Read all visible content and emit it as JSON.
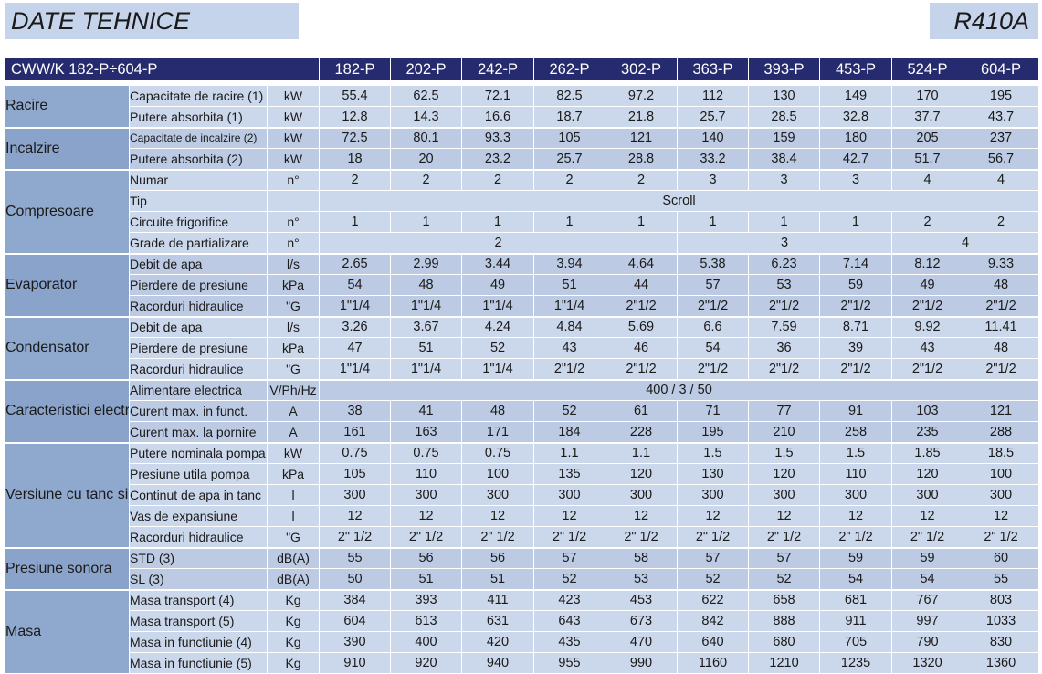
{
  "title": "DATE TEHNICE",
  "refrigerant": "R410A",
  "table": {
    "model_range": "CWW/K 182-P÷604-P",
    "columns": [
      "182-P",
      "202-P",
      "242-P",
      "262-P",
      "302-P",
      "363-P",
      "393-P",
      "453-P",
      "524-P",
      "604-P"
    ],
    "sections": [
      {
        "name": "Racire",
        "rows": [
          {
            "label": "Capacitate de racire (1)",
            "unit": "kW",
            "values": [
              "55.4",
              "62.5",
              "72.1",
              "82.5",
              "97.2",
              "112",
              "130",
              "149",
              "170",
              "195"
            ]
          },
          {
            "label": "Putere absorbita (1)",
            "unit": "kW",
            "values": [
              "12.8",
              "14.3",
              "16.6",
              "18.7",
              "21.8",
              "25.7",
              "28.5",
              "32.8",
              "37.7",
              "43.7"
            ]
          }
        ]
      },
      {
        "name": "Incalzire",
        "rows": [
          {
            "label": "Capacitate de incalzire (2)",
            "unit": "kW",
            "small": true,
            "values": [
              "72.5",
              "80.1",
              "93.3",
              "105",
              "121",
              "140",
              "159",
              "180",
              "205",
              "237"
            ]
          },
          {
            "label": "Putere absorbita (2)",
            "unit": "kW",
            "values": [
              "18",
              "20",
              "23.2",
              "25.7",
              "28.8",
              "33.2",
              "38.4",
              "42.7",
              "51.7",
              "56.7"
            ]
          }
        ]
      },
      {
        "name": "Compresoare",
        "rows": [
          {
            "label": "Numar",
            "unit": "n°",
            "values": [
              "2",
              "2",
              "2",
              "2",
              "2",
              "3",
              "3",
              "3",
              "4",
              "4"
            ]
          },
          {
            "label": "Tip",
            "unit": "",
            "spans": [
              {
                "text": "Scroll",
                "span": 10
              }
            ]
          },
          {
            "label": "Circuite frigorifice",
            "unit": "n°",
            "values": [
              "1",
              "1",
              "1",
              "1",
              "1",
              "1",
              "1",
              "1",
              "2",
              "2"
            ]
          },
          {
            "label": "Grade de partializare",
            "unit": "n°",
            "spans": [
              {
                "text": "2",
                "span": 5
              },
              {
                "text": "3",
                "span": 3
              },
              {
                "text": "4",
                "span": 2
              }
            ]
          }
        ]
      },
      {
        "name": "Evaporator",
        "rows": [
          {
            "label": "Debit de apa",
            "unit": "l/s",
            "values": [
              "2.65",
              "2.99",
              "3.44",
              "3.94",
              "4.64",
              "5.38",
              "6.23",
              "7.14",
              "8.12",
              "9.33"
            ]
          },
          {
            "label": "Pierdere de presiune",
            "unit": "kPa",
            "values": [
              "54",
              "48",
              "49",
              "51",
              "44",
              "57",
              "53",
              "59",
              "49",
              "48"
            ]
          },
          {
            "label": "Racorduri hidraulice",
            "unit": "\"G",
            "values": [
              "1\"1/4",
              "1\"1/4",
              "1\"1/4",
              "1\"1/4",
              "2\"1/2",
              "2\"1/2",
              "2\"1/2",
              "2\"1/2",
              "2\"1/2",
              "2\"1/2"
            ]
          }
        ]
      },
      {
        "name": "Condensator",
        "rows": [
          {
            "label": "Debit de apa",
            "unit": "l/s",
            "values": [
              "3.26",
              "3.67",
              "4.24",
              "4.84",
              "5.69",
              "6.6",
              "7.59",
              "8.71",
              "9.92",
              "11.41"
            ]
          },
          {
            "label": "Pierdere de presiune",
            "unit": "kPa",
            "values": [
              "47",
              "51",
              "52",
              "43",
              "46",
              "54",
              "36",
              "39",
              "43",
              "48"
            ]
          },
          {
            "label": "Racorduri hidraulice",
            "unit": "\"G",
            "values": [
              "1\"1/4",
              "1\"1/4",
              "1\"1/4",
              "2\"1/2",
              "2\"1/2",
              "2\"1/2",
              "2\"1/2",
              "2\"1/2",
              "2\"1/2",
              "2\"1/2"
            ]
          }
        ]
      },
      {
        "name": "Caracteristici electrice",
        "rows": [
          {
            "label": "Alimentare electrica",
            "unit": "V/Ph/Hz",
            "spans": [
              {
                "text": "400 / 3 / 50",
                "span": 10
              }
            ]
          },
          {
            "label": "Curent max. in funct.",
            "unit": "A",
            "values": [
              "38",
              "41",
              "48",
              "52",
              "61",
              "71",
              "77",
              "91",
              "103",
              "121"
            ]
          },
          {
            "label": "Curent max. la pornire",
            "unit": "A",
            "values": [
              "161",
              "163",
              "171",
              "184",
              "228",
              "195",
              "210",
              "258",
              "235",
              "288"
            ]
          }
        ]
      },
      {
        "name": "Versiune cu tanc si pompa",
        "rows": [
          {
            "label": "Putere nominala pompa",
            "unit": "kW",
            "values": [
              "0.75",
              "0.75",
              "0.75",
              "1.1",
              "1.1",
              "1.5",
              "1.5",
              "1.5",
              "1.85",
              "18.5"
            ]
          },
          {
            "label": "Presiune utila pompa",
            "unit": "kPa",
            "values": [
              "105",
              "110",
              "100",
              "135",
              "120",
              "130",
              "120",
              "110",
              "120",
              "100"
            ]
          },
          {
            "label": "Continut de apa in tanc",
            "unit": "l",
            "values": [
              "300",
              "300",
              "300",
              "300",
              "300",
              "300",
              "300",
              "300",
              "300",
              "300"
            ]
          },
          {
            "label": "Vas de expansiune",
            "unit": "l",
            "values": [
              "12",
              "12",
              "12",
              "12",
              "12",
              "12",
              "12",
              "12",
              "12",
              "12"
            ]
          },
          {
            "label": "Racorduri hidraulice",
            "unit": "\"G",
            "values": [
              "2\" 1/2",
              "2\" 1/2",
              "2\" 1/2",
              "2\" 1/2",
              "2\" 1/2",
              "2\" 1/2",
              "2\" 1/2",
              "2\" 1/2",
              "2\" 1/2",
              "2\" 1/2"
            ]
          }
        ]
      },
      {
        "name": "Presiune sonora",
        "rows": [
          {
            "label": "STD (3)",
            "unit": "dB(A)",
            "values": [
              "55",
              "56",
              "56",
              "57",
              "58",
              "57",
              "57",
              "59",
              "59",
              "60"
            ]
          },
          {
            "label": "SL (3)",
            "unit": "dB(A)",
            "values": [
              "50",
              "51",
              "51",
              "52",
              "53",
              "52",
              "52",
              "54",
              "54",
              "55"
            ]
          }
        ]
      },
      {
        "name": "Masa",
        "rows": [
          {
            "label": "Masa transport (4)",
            "unit": "Kg",
            "values": [
              "384",
              "393",
              "411",
              "423",
              "453",
              "622",
              "658",
              "681",
              "767",
              "803"
            ]
          },
          {
            "label": "Masa transport (5)",
            "unit": "Kg",
            "values": [
              "604",
              "613",
              "631",
              "643",
              "673",
              "842",
              "888",
              "911",
              "997",
              "1033"
            ]
          },
          {
            "label": "Masa in functiunie (4)",
            "unit": "Kg",
            "values": [
              "390",
              "400",
              "420",
              "435",
              "470",
              "640",
              "680",
              "705",
              "790",
              "830"
            ]
          },
          {
            "label": "Masa in functiunie (5)",
            "unit": "Kg",
            "values": [
              "910",
              "920",
              "940",
              "955",
              "990",
              "1160",
              "1210",
              "1235",
              "1320",
              "1360"
            ]
          }
        ]
      }
    ]
  }
}
